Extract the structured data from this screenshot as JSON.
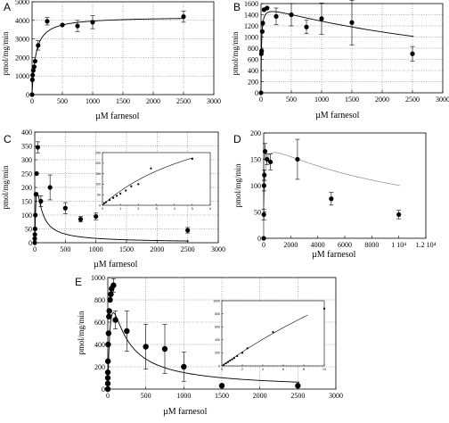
{
  "figure": {
    "xlabel": "µM farnesol",
    "ylabel": "pmol/mg/min"
  },
  "chart_data": [
    {
      "id": "A",
      "type": "scatter",
      "label": "A",
      "title": "",
      "xlabel": "µM farnesol",
      "ylabel": "pmol/mg/min",
      "xlim": [
        0,
        3000
      ],
      "ylim": [
        0,
        5000
      ],
      "xticks": [
        0,
        500,
        1000,
        1500,
        2000,
        2500,
        3000
      ],
      "yticks": [
        0,
        1000,
        2000,
        3000,
        4000,
        5000
      ],
      "tick_labels_x": [
        "0",
        "500",
        "1000",
        "1500",
        "2000",
        "2500",
        "3000"
      ],
      "tick_labels_y": [
        "0",
        "1000",
        "2000",
        "3000",
        "4000",
        "5000"
      ],
      "grid": "dotted",
      "points": [
        {
          "x": 0,
          "y": 0,
          "err": 0
        },
        {
          "x": 5,
          "y": 800,
          "err": 0
        },
        {
          "x": 10,
          "y": 1050,
          "err": 0
        },
        {
          "x": 20,
          "y": 1300,
          "err": 0
        },
        {
          "x": 35,
          "y": 1500,
          "err": 0
        },
        {
          "x": 50,
          "y": 1800,
          "err": 0
        },
        {
          "x": 100,
          "y": 2650,
          "err": 250
        },
        {
          "x": 250,
          "y": 3950,
          "err": 200
        },
        {
          "x": 500,
          "y": 3750,
          "err": 0
        },
        {
          "x": 750,
          "y": 3700,
          "err": 300
        },
        {
          "x": 1000,
          "y": 3900,
          "err": 350
        },
        {
          "x": 2500,
          "y": 4200,
          "err": 300
        }
      ],
      "fit": {
        "model": "michaelis-menten",
        "vmax": 4200,
        "km": 60
      }
    },
    {
      "id": "B",
      "type": "scatter",
      "label": "B",
      "title": "",
      "xlabel": "µM farnesol",
      "ylabel": "pmol/mg/min",
      "xlim": [
        0,
        3000
      ],
      "ylim": [
        0,
        1600
      ],
      "xticks": [
        0,
        500,
        1000,
        1500,
        2000,
        2500,
        3000
      ],
      "yticks": [
        0,
        200,
        400,
        600,
        800,
        1000,
        1200,
        1400,
        1600
      ],
      "tick_labels_x": [
        "0",
        "500",
        "1000",
        "1500",
        "2000",
        "2500",
        "3000"
      ],
      "tick_labels_y": [
        "0",
        "200",
        "400",
        "600",
        "800",
        "1000",
        "1200",
        "1400",
        "1600"
      ],
      "grid": "dotted",
      "points": [
        {
          "x": 0,
          "y": 0,
          "err": 0
        },
        {
          "x": 5,
          "y": 700,
          "err": 0
        },
        {
          "x": 10,
          "y": 750,
          "err": 0
        },
        {
          "x": 20,
          "y": 1100,
          "err": 0
        },
        {
          "x": 30,
          "y": 1250,
          "err": 0
        },
        {
          "x": 50,
          "y": 1490,
          "err": 0
        },
        {
          "x": 100,
          "y": 1520,
          "err": 0
        },
        {
          "x": 250,
          "y": 1370,
          "err": 150
        },
        {
          "x": 500,
          "y": 1400,
          "err": 200
        },
        {
          "x": 750,
          "y": 1180,
          "err": 120
        },
        {
          "x": 1000,
          "y": 1330,
          "err": 280
        },
        {
          "x": 1500,
          "y": 1260,
          "err": 400
        },
        {
          "x": 2500,
          "y": 700,
          "err": 130
        }
      ],
      "fit": {
        "model": "substrate-inhibition",
        "vmax": 1580,
        "km": 8,
        "ki": 4500
      }
    },
    {
      "id": "C",
      "type": "scatter",
      "label": "C",
      "title": "",
      "xlabel": "µM farnesol",
      "ylabel": "pmol/mg/min",
      "xlim": [
        0,
        3000
      ],
      "ylim": [
        0,
        400
      ],
      "xticks": [
        0,
        500,
        1000,
        1500,
        2000,
        2500,
        3000
      ],
      "yticks": [
        0,
        50,
        100,
        150,
        200,
        250,
        300,
        350,
        400
      ],
      "tick_labels_x": [
        "0",
        "500",
        "1000",
        "1500",
        "2000",
        "2500",
        "3000"
      ],
      "tick_labels_y": [
        "0",
        "50",
        "100",
        "150",
        "200",
        "250",
        "300",
        "350",
        "400"
      ],
      "grid": "dotted",
      "points": [
        {
          "x": 0,
          "y": 0,
          "err": 0
        },
        {
          "x": 0,
          "y": 15,
          "err": 0
        },
        {
          "x": 2,
          "y": 30,
          "err": 0
        },
        {
          "x": 5,
          "y": 50,
          "err": 0
        },
        {
          "x": 10,
          "y": 100,
          "err": 0
        },
        {
          "x": 20,
          "y": 175,
          "err": 0
        },
        {
          "x": 30,
          "y": 250,
          "err": 0
        },
        {
          "x": 50,
          "y": 345,
          "err": 20
        },
        {
          "x": 100,
          "y": 150,
          "err": 20
        },
        {
          "x": 250,
          "y": 200,
          "err": 45
        },
        {
          "x": 500,
          "y": 125,
          "err": 20
        },
        {
          "x": 750,
          "y": 85,
          "err": 10
        },
        {
          "x": 1000,
          "y": 95,
          "err": 12
        },
        {
          "x": 2500,
          "y": 45,
          "err": 10
        }
      ],
      "fit": {
        "model": "substrate-inhibition",
        "vmax": 2000,
        "km": 200,
        "ki": 8
      },
      "inset": {
        "xlim": [
          0,
          6
        ],
        "ylim": [
          0,
          250
        ],
        "xticks": [
          0,
          1,
          2,
          3,
          4,
          5,
          6
        ],
        "yticks": [
          0,
          50,
          100,
          150,
          200,
          250
        ],
        "tick_labels_x": [
          "0",
          "1",
          "2",
          "3",
          "4",
          "5",
          "6"
        ],
        "tick_labels_y": [
          "0",
          "50",
          "100",
          "150",
          "200",
          "250"
        ],
        "points": [
          {
            "x": 0.1,
            "y": 10
          },
          {
            "x": 0.2,
            "y": 15
          },
          {
            "x": 0.4,
            "y": 25
          },
          {
            "x": 0.6,
            "y": 35
          },
          {
            "x": 0.8,
            "y": 45
          },
          {
            "x": 1.0,
            "y": 55
          },
          {
            "x": 1.3,
            "y": 70
          },
          {
            "x": 1.6,
            "y": 90
          },
          {
            "x": 2.0,
            "y": 100
          },
          {
            "x": 2.7,
            "y": 175
          },
          {
            "x": 5.0,
            "y": 220
          }
        ],
        "fit": {
          "model": "michaelis-menten",
          "vmax": 530,
          "km": 6.8
        }
      }
    },
    {
      "id": "D",
      "type": "scatter",
      "label": "D",
      "title": "",
      "xlabel": "µM farnesol",
      "ylabel": "pmol/mg/min",
      "xlim": [
        0,
        12000
      ],
      "ylim": [
        0,
        200
      ],
      "xticks": [
        0,
        2000,
        4000,
        6000,
        8000,
        10000,
        12000
      ],
      "yticks": [
        0,
        50,
        100,
        150,
        200
      ],
      "tick_labels_x": [
        "0",
        "2000",
        "4000",
        "6000",
        "8000",
        "1 10⁴",
        "1.2 10⁴"
      ],
      "tick_labels_y": [
        "0",
        "50",
        "100",
        "150",
        "200"
      ],
      "grid": "none",
      "points": [
        {
          "x": 0,
          "y": 0,
          "err": 0
        },
        {
          "x": 10,
          "y": 45,
          "err": 10
        },
        {
          "x": 25,
          "y": 100,
          "err": 10
        },
        {
          "x": 50,
          "y": 120,
          "err": 10
        },
        {
          "x": 100,
          "y": 165,
          "err": 15
        },
        {
          "x": 250,
          "y": 150,
          "err": 10
        },
        {
          "x": 500,
          "y": 145,
          "err": 15
        },
        {
          "x": 2500,
          "y": 150,
          "err": 38
        },
        {
          "x": 5000,
          "y": 75,
          "err": 12
        },
        {
          "x": 10000,
          "y": 45,
          "err": 8
        }
      ],
      "fit": {
        "model": "substrate-inhibition",
        "vmax": 185,
        "km": 55,
        "ki": 12000
      }
    },
    {
      "id": "E",
      "type": "scatter",
      "label": "E",
      "title": "",
      "xlabel": "µM farnesol",
      "ylabel": "pmol/mg/min",
      "xlim": [
        0,
        3000
      ],
      "ylim": [
        0,
        1000
      ],
      "xticks": [
        0,
        500,
        1000,
        1500,
        2000,
        2500,
        3000
      ],
      "yticks": [
        0,
        200,
        400,
        600,
        800,
        1000
      ],
      "tick_labels_x": [
        "0",
        "500",
        "1000",
        "1500",
        "2000",
        "2500",
        "3000"
      ],
      "tick_labels_y": [
        "0",
        "200",
        "400",
        "600",
        "800",
        "1000"
      ],
      "grid": "dotted",
      "points": [
        {
          "x": 0,
          "y": 0,
          "err": 0
        },
        {
          "x": 0,
          "y": 50,
          "err": 0
        },
        {
          "x": 0,
          "y": 100,
          "err": 0
        },
        {
          "x": 0,
          "y": 150,
          "err": 0
        },
        {
          "x": 2,
          "y": 250,
          "err": 0
        },
        {
          "x": 5,
          "y": 400,
          "err": 0
        },
        {
          "x": 10,
          "y": 500,
          "err": 0
        },
        {
          "x": 15,
          "y": 650,
          "err": 0
        },
        {
          "x": 20,
          "y": 700,
          "err": 0
        },
        {
          "x": 30,
          "y": 800,
          "err": 0
        },
        {
          "x": 40,
          "y": 850,
          "err": 0
        },
        {
          "x": 50,
          "y": 900,
          "err": 0
        },
        {
          "x": 75,
          "y": 930,
          "err": 60
        },
        {
          "x": 100,
          "y": 620,
          "err": 80
        },
        {
          "x": 250,
          "y": 520,
          "err": 180
        },
        {
          "x": 500,
          "y": 380,
          "err": 200
        },
        {
          "x": 750,
          "y": 360,
          "err": 220
        },
        {
          "x": 1000,
          "y": 200,
          "err": 130
        },
        {
          "x": 1500,
          "y": 30,
          "err": 0
        },
        {
          "x": 2500,
          "y": 30,
          "err": 0
        }
      ],
      "fit": {
        "model": "substrate-inhibition",
        "vmax": 1800,
        "km": 60,
        "ki": 90
      },
      "inset": {
        "xlim": [
          0,
          10
        ],
        "ylim": [
          0,
          1000
        ],
        "xticks": [
          0,
          2,
          4,
          6,
          8,
          10
        ],
        "yticks": [
          0,
          200,
          400,
          600,
          800,
          1000
        ],
        "tick_labels_x": [
          "0",
          "2",
          "4",
          "6",
          "8",
          "10"
        ],
        "tick_labels_y": [
          "0",
          "200",
          "400",
          "600",
          "800",
          "1000"
        ],
        "points": [
          {
            "x": 0.2,
            "y": 20
          },
          {
            "x": 0.4,
            "y": 40
          },
          {
            "x": 0.6,
            "y": 60
          },
          {
            "x": 0.8,
            "y": 80
          },
          {
            "x": 1.0,
            "y": 100
          },
          {
            "x": 1.2,
            "y": 120
          },
          {
            "x": 1.5,
            "y": 150
          },
          {
            "x": 2.0,
            "y": 200
          },
          {
            "x": 2.5,
            "y": 270
          },
          {
            "x": 5.0,
            "y": 520
          },
          {
            "x": 10,
            "y": 880
          }
        ],
        "fit": {
          "model": "michaelis-menten",
          "vmax": 4500,
          "km": 40
        }
      }
    }
  ]
}
